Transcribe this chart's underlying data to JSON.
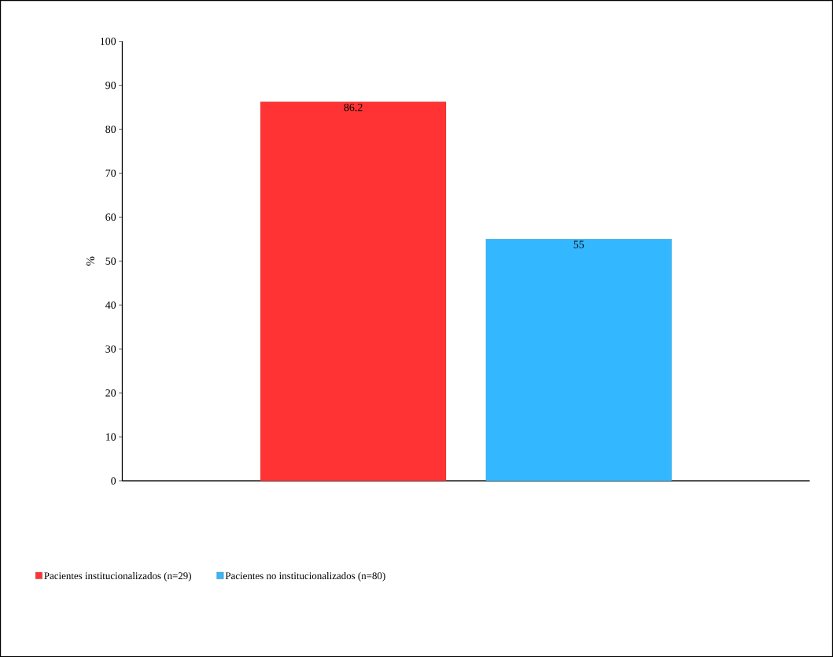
{
  "chart_data": {
    "type": "bar",
    "ylabel": "%",
    "categories": [
      null
    ],
    "series": [
      {
        "name": "Pacientes institucionalizados (n=29)",
        "color": "#ff3333",
        "values": [
          86.2
        ]
      },
      {
        "name": "Pacientes no institucionalizados (n=80)",
        "color": "#33b8ff",
        "values": [
          55
        ]
      }
    ],
    "ylim": [
      0,
      100
    ],
    "yticks": [
      0,
      10,
      20,
      30,
      40,
      50,
      60,
      70,
      80,
      90,
      100
    ],
    "data_labels": true,
    "legend": "bottom left"
  }
}
